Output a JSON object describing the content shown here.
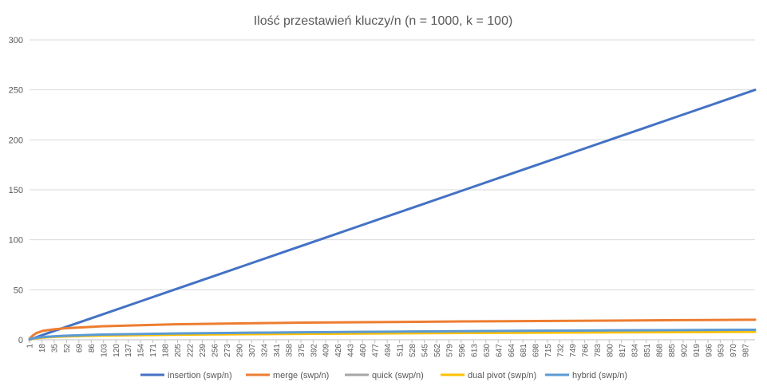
{
  "chart_data": {
    "type": "line",
    "title": "Ilość przestawień kluczy/n (n = 1000, k = 100)",
    "xlabel": "",
    "ylabel": "",
    "ylim": [
      0,
      300
    ],
    "yticks": [
      0,
      50,
      100,
      150,
      200,
      250,
      300
    ],
    "xlim": [
      1,
      1000
    ],
    "xticks": [
      1,
      18,
      35,
      52,
      69,
      86,
      103,
      120,
      137,
      154,
      171,
      188,
      205,
      222,
      239,
      256,
      273,
      290,
      307,
      324,
      341,
      358,
      375,
      392,
      409,
      426,
      443,
      460,
      477,
      494,
      511,
      528,
      545,
      562,
      579,
      596,
      613,
      630,
      647,
      664,
      681,
      698,
      715,
      732,
      749,
      766,
      783,
      800,
      817,
      834,
      851,
      868,
      885,
      902,
      919,
      936,
      953,
      970,
      987
    ],
    "grid": "horizontal",
    "legend": "bottom",
    "series": [
      {
        "name": "insertion (swp/n)",
        "color": "#4472C4",
        "x": [
          1,
          10,
          25,
          50,
          100,
          150,
          200,
          250,
          300,
          350,
          400,
          450,
          500,
          550,
          600,
          650,
          700,
          750,
          800,
          850,
          900,
          950,
          1000
        ],
        "y": [
          0,
          2.5,
          6.3,
          12.5,
          25,
          37.5,
          50,
          62.5,
          75,
          87.5,
          100,
          112.5,
          125,
          137.5,
          150,
          162.5,
          175,
          187.5,
          200,
          212.5,
          225,
          237.5,
          250
        ]
      },
      {
        "name": "merge (swp/n)",
        "color": "#ED7D31",
        "x": [
          1,
          5,
          10,
          20,
          35,
          50,
          100,
          150,
          200,
          300,
          400,
          500,
          600,
          700,
          800,
          900,
          1000
        ],
        "y": [
          1,
          4,
          6.5,
          9,
          10.5,
          11.5,
          13.5,
          14.5,
          15.5,
          16.5,
          17.3,
          17.8,
          18.3,
          18.8,
          19.2,
          19.6,
          20
        ]
      },
      {
        "name": "quick (swp/n)",
        "color": "#A5A5A5",
        "x": [
          1,
          10,
          25,
          50,
          100,
          200,
          300,
          400,
          500,
          600,
          700,
          800,
          900,
          1000
        ],
        "y": [
          0.5,
          2,
          3,
          4,
          5,
          6,
          7,
          7.5,
          8,
          8.5,
          9,
          9.3,
          9.6,
          10
        ]
      },
      {
        "name": "dual pivot (swp/n)",
        "color": "#FFC000",
        "x": [
          1,
          10,
          25,
          50,
          100,
          200,
          300,
          400,
          500,
          600,
          700,
          800,
          900,
          1000
        ],
        "y": [
          0.3,
          1.5,
          2.5,
          3.3,
          4.2,
          5,
          5.6,
          6,
          6.4,
          6.8,
          7.1,
          7.4,
          7.7,
          8
        ]
      },
      {
        "name": "hybrid (swp/n)",
        "color": "#5B9BD5",
        "x": [
          1,
          10,
          25,
          50,
          100,
          200,
          300,
          400,
          500,
          600,
          700,
          800,
          900,
          1000
        ],
        "y": [
          0.5,
          2,
          3,
          4,
          5.2,
          6.3,
          7,
          7.6,
          8.1,
          8.6,
          9,
          9.4,
          9.7,
          10
        ]
      }
    ]
  }
}
